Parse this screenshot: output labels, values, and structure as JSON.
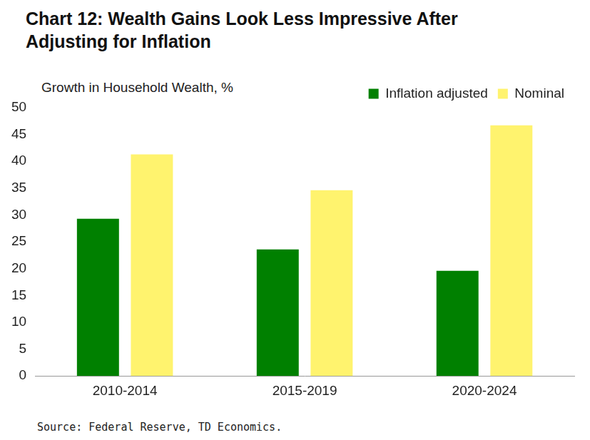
{
  "chart_data": {
    "type": "bar",
    "title": "Chart 12: Wealth Gains Look Less Impressive After Adjusting for Inflation",
    "subtitle": "Growth in Household Wealth, %",
    "source": "Source: Federal Reserve, TD Economics.",
    "categories": [
      "2010-2014",
      "2015-2019",
      "2020-2024"
    ],
    "series": [
      {
        "name": "Inflation adjusted",
        "color": "#008000",
        "values": [
          29.3,
          23.6,
          19.6
        ]
      },
      {
        "name": "Nominal",
        "color": "#FFF36E",
        "values": [
          41.3,
          34.6,
          46.7
        ]
      }
    ],
    "ylim": [
      0,
      50
    ],
    "yticks": [
      0,
      5,
      10,
      15,
      20,
      25,
      30,
      35,
      40,
      45,
      50
    ],
    "grid": false,
    "legend": "top right"
  }
}
